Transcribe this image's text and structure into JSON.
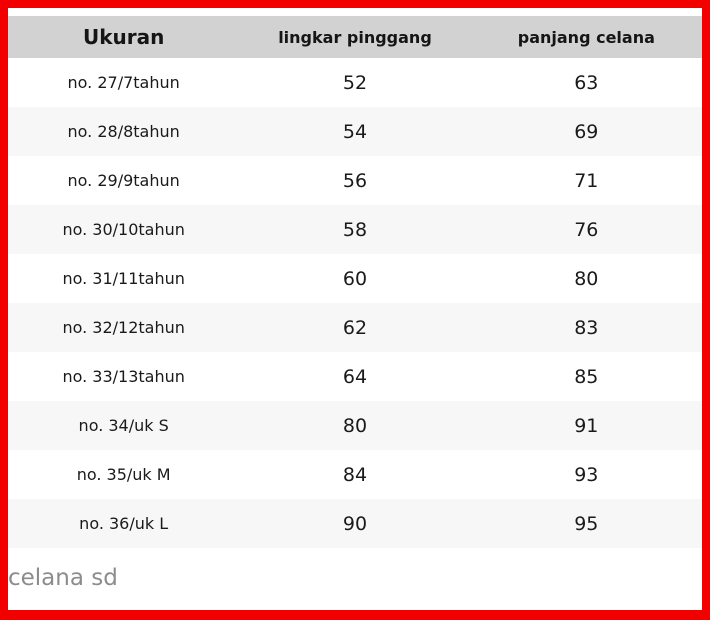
{
  "frame": {
    "border_color": "#f20000"
  },
  "colors": {
    "header_background": "#d2d2d2",
    "row_alt_background": "#f7f7f7",
    "text": "#1a1a1a",
    "caption_text": "#8c8c8c"
  },
  "caption": "celana sd",
  "chart_data": {
    "type": "table",
    "title": "",
    "columns": [
      "Ukuran",
      "lingkar pinggang",
      "panjang celana"
    ],
    "rows": [
      [
        "no. 27/7tahun",
        52,
        63
      ],
      [
        "no. 28/8tahun",
        54,
        69
      ],
      [
        "no. 29/9tahun",
        56,
        71
      ],
      [
        "no. 30/10tahun",
        58,
        76
      ],
      [
        "no. 31/11tahun",
        60,
        80
      ],
      [
        "no. 32/12tahun",
        62,
        83
      ],
      [
        "no. 33/13tahun",
        64,
        85
      ],
      [
        "no. 34/uk S",
        80,
        91
      ],
      [
        "no. 35/uk M",
        84,
        93
      ],
      [
        "no. 36/uk L",
        90,
        95
      ]
    ]
  }
}
